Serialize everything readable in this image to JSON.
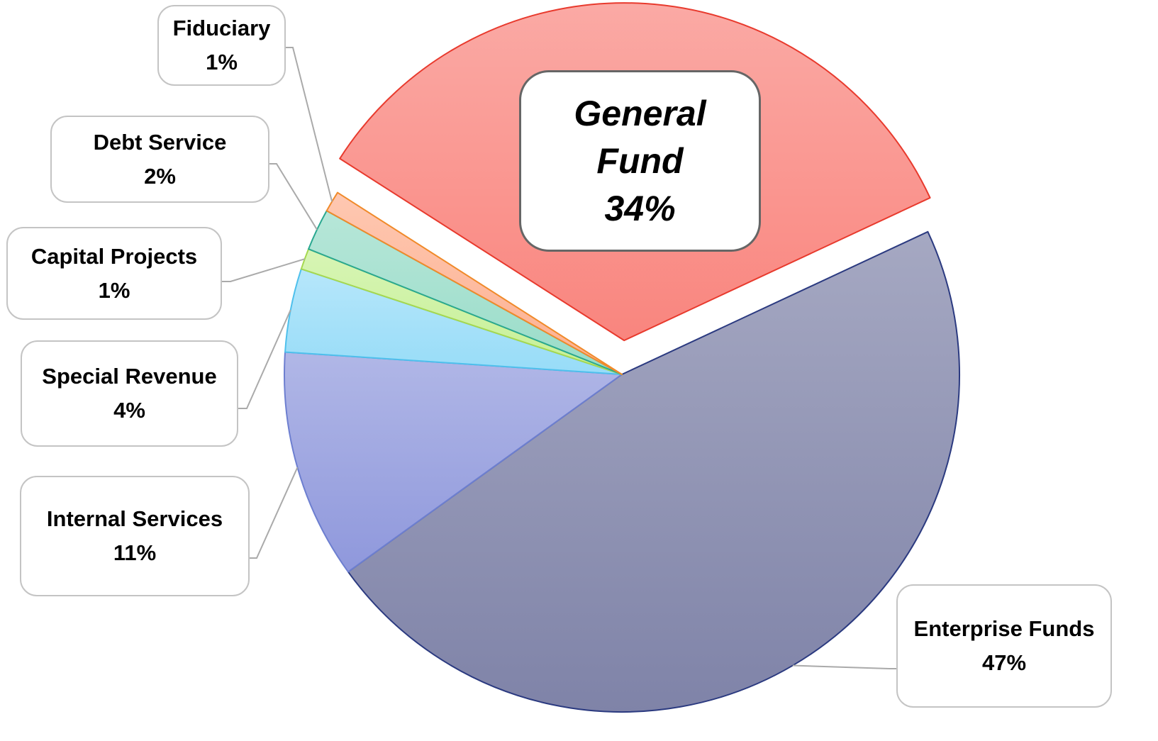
{
  "chart_data": {
    "type": "pie",
    "categories": [
      "Enterprise Funds",
      "Internal Services",
      "Special Revenue",
      "Capital Projects",
      "Debt Service",
      "Fiduciary",
      "General Fund"
    ],
    "values": [
      47,
      11,
      4,
      1,
      2,
      1,
      34
    ],
    "value_labels": [
      "47%",
      "11%",
      "4%",
      "1%",
      "2%",
      "1%",
      "34%"
    ],
    "colors": [
      "#7f83a8",
      "#8f98dc",
      "#97dcf8",
      "#c6f095",
      "#98dcc8",
      "#fdb090",
      "#f9857e"
    ],
    "edge_colors": [
      "#2b3a80",
      "#6d7fd0",
      "#4ec0ec",
      "#a6d84f",
      "#2aa890",
      "#f08a2a",
      "#e83a2d"
    ]
  }
}
